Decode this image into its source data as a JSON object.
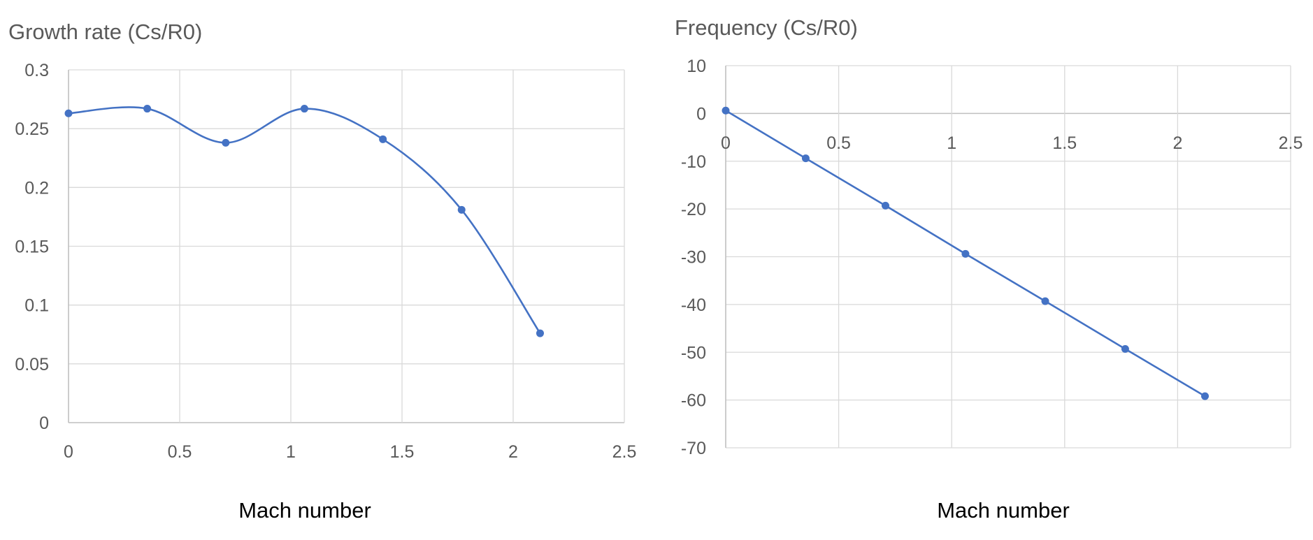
{
  "colors": {
    "series": "#4472c4",
    "grid": "#d9d9d9",
    "axis": "#bfbfbf",
    "label": "#595959"
  },
  "chart_data": [
    {
      "type": "line",
      "smooth": true,
      "title": "Growth rate (Cs/R0)",
      "xlabel": "Mach number",
      "ylabel": "",
      "xlim": [
        0,
        2.5
      ],
      "ylim": [
        0,
        0.3
      ],
      "x_ticks": [
        "0",
        "0.5",
        "1",
        "1.5",
        "2",
        "2.5"
      ],
      "y_ticks": [
        "0",
        "0.05",
        "0.1",
        "0.15",
        "0.2",
        "0.25",
        "0.3"
      ],
      "grid": true,
      "series": [
        {
          "x": [
            0,
            0.354,
            0.707,
            1.061,
            1.414,
            1.768,
            2.121
          ],
          "y": [
            0.263,
            0.267,
            0.238,
            0.267,
            0.241,
            0.181,
            0.076
          ]
        }
      ]
    },
    {
      "type": "line",
      "smooth": false,
      "title": "Frequency (Cs/R0)",
      "xlabel": "Mach number",
      "ylabel": "",
      "xlim": [
        0,
        2.5
      ],
      "ylim": [
        -70,
        10
      ],
      "x_axis_at_zero": true,
      "x_ticks": [
        "0",
        "0.5",
        "1",
        "1.5",
        "2",
        "2.5"
      ],
      "y_ticks": [
        "-70",
        "-60",
        "-50",
        "-40",
        "-30",
        "-20",
        "-10",
        "0",
        "10"
      ],
      "grid": true,
      "series": [
        {
          "x": [
            0,
            0.354,
            0.707,
            1.061,
            1.414,
            1.768,
            2.121
          ],
          "y": [
            0.6,
            -9.4,
            -19.3,
            -29.4,
            -39.3,
            -49.3,
            -59.2
          ]
        }
      ]
    }
  ]
}
